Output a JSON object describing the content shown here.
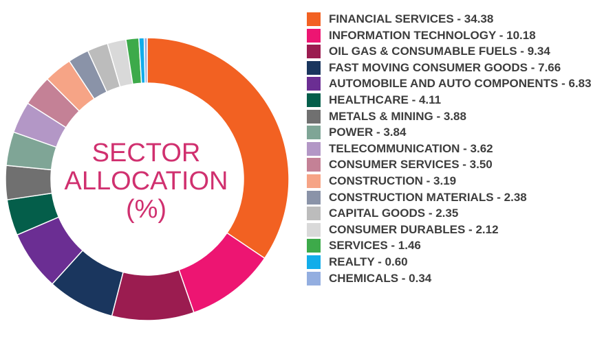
{
  "chart_data": {
    "type": "pie",
    "title": "SECTOR ALLOCATION (%)",
    "title_lines": [
      "SECTOR",
      "ALLOCATION",
      "(%)"
    ],
    "legend_position": "right",
    "slices": [
      {
        "label": "FINANCIAL SERVICES",
        "value": 34.38,
        "color": "#f26122"
      },
      {
        "label": "INFORMATION TECHNOLOGY",
        "value": 10.18,
        "color": "#ed1572"
      },
      {
        "label": "OIL GAS & CONSUMABLE FUELS",
        "value": 9.34,
        "color": "#9b1c50"
      },
      {
        "label": "FAST MOVING CONSUMER GOODS",
        "value": 7.66,
        "color": "#1a365e"
      },
      {
        "label": "AUTOMOBILE AND AUTO COMPONENTS",
        "value": 6.83,
        "color": "#6b2e93"
      },
      {
        "label": "HEALTHCARE",
        "value": 4.11,
        "color": "#045e4a"
      },
      {
        "label": "METALS & MINING",
        "value": 3.88,
        "color": "#707070"
      },
      {
        "label": "POWER",
        "value": 3.84,
        "color": "#7fa596"
      },
      {
        "label": "TELECOMMUNICATION",
        "value": 3.62,
        "color": "#b397c6"
      },
      {
        "label": "CONSUMER SERVICES",
        "value": 3.5,
        "color": "#c48196"
      },
      {
        "label": "CONSTRUCTION",
        "value": 3.19,
        "color": "#f6a486"
      },
      {
        "label": "CONSTRUCTION MATERIALS",
        "value": 2.38,
        "color": "#8a93a8"
      },
      {
        "label": "CAPITAL GOODS",
        "value": 2.35,
        "color": "#bcbcbc"
      },
      {
        "label": "CONSUMER DURABLES",
        "value": 2.12,
        "color": "#d9d9d9"
      },
      {
        "label": "SERVICES",
        "value": 1.46,
        "color": "#3daa4a"
      },
      {
        "label": "REALTY",
        "value": 0.6,
        "color": "#12adea"
      },
      {
        "label": "CHEMICALS",
        "value": 0.34,
        "color": "#93aee0"
      }
    ]
  }
}
